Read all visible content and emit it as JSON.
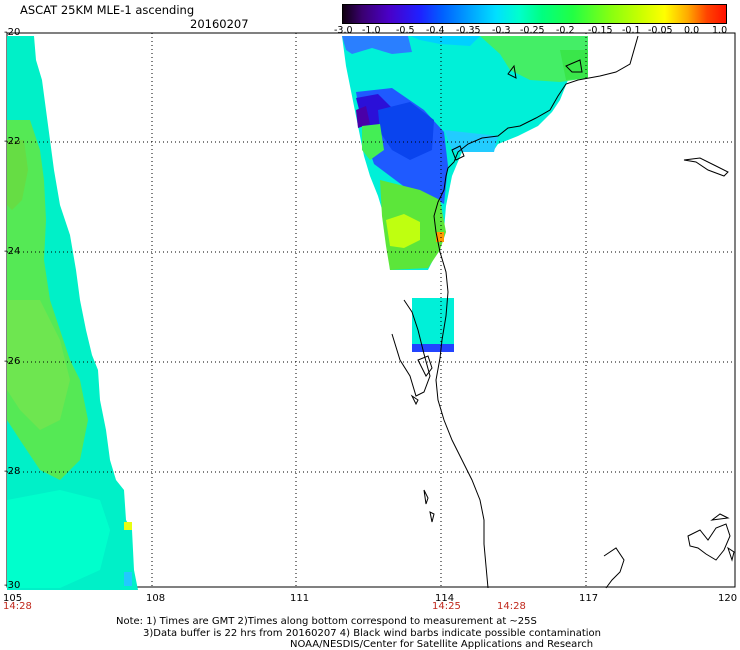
{
  "title": "ASCAT 25KM MLE-1 ascending",
  "date": "20160207",
  "colorbar": {
    "labels": [
      "-3.0",
      "-1.0",
      "-0.5",
      "-0.4",
      "-0.35",
      "-0.3",
      "-0.25",
      "-0.2",
      "-0.15",
      "-0.1",
      "-0.05",
      "0.0",
      "1.0"
    ],
    "colors": [
      "#200020",
      "#5a0096",
      "#2b00ff",
      "#0050ff",
      "#00aaff",
      "#00ffe0",
      "#00ff88",
      "#44ff22",
      "#99ff11",
      "#ccff00",
      "#ffff00",
      "#ffaa00",
      "#ff2200"
    ]
  },
  "lat_labels": [
    "-20",
    "-22",
    "-24",
    "-26",
    "-28",
    "-30"
  ],
  "lon_labels": [
    "105",
    "108",
    "111",
    "114",
    "117",
    "120"
  ],
  "time_labels": [
    "14:28",
    "14:25",
    "14:28"
  ],
  "notes": [
    "Note: 1) Times are GMT 2)Times along bottom correspond to measurement at ~25S",
    "3)Data buffer is 22 hrs from 20160207 4) Black wind barbs indicate possible contamination",
    "NOAA/NESDIS/Center for Satellite Applications and Research"
  ]
}
